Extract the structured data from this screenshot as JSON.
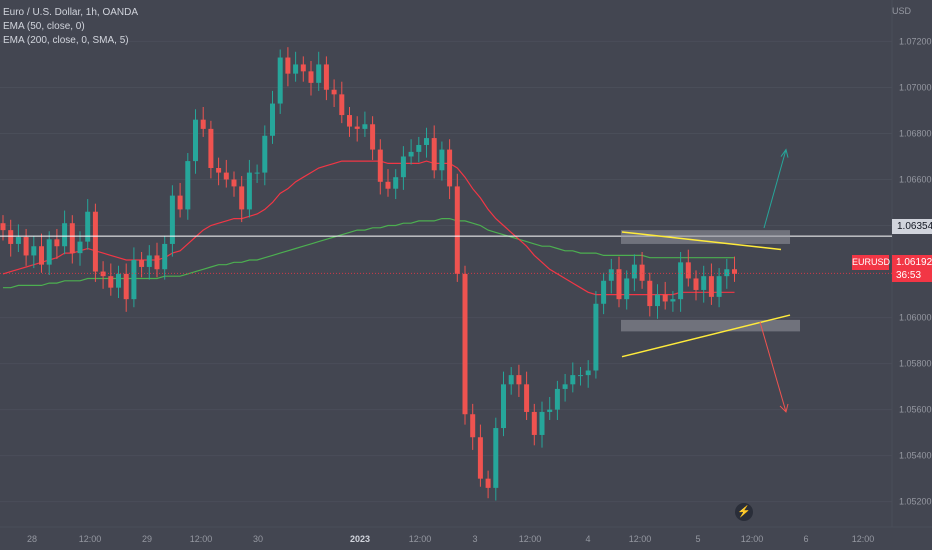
{
  "legend": {
    "symbol": "Euro / U.S. Dollar, 1h, OANDA",
    "ema50": "EMA (50, close, 0)",
    "ema200": "EMA (200, close, 0, SMA, 5)"
  },
  "currency": "USD",
  "symbol_tag": "EURUSD",
  "horizontal_line_price": "1.06354",
  "last_price": "1.06192",
  "countdown": "36:53",
  "colors": {
    "background": "#434651",
    "up": "#26a69a",
    "down": "#ef5350",
    "ema50": "#f23645",
    "ema200": "#4caf50",
    "trendline": "#ffeb3b",
    "zone": "#9598a1"
  },
  "chart_data": {
    "type": "candlestick",
    "y_ticks": [
      "1.07200",
      "1.07000",
      "1.06800",
      "1.06600",
      "1.06400",
      "1.06000",
      "1.05800",
      "1.05600",
      "1.05400",
      "1.05200"
    ],
    "x_ticks": [
      "28",
      "12:00",
      "29",
      "12:00",
      "30",
      "2023",
      "12:00",
      "3",
      "12:00",
      "4",
      "12:00",
      "5",
      "12:00",
      "6",
      "12:00"
    ],
    "ylim": [
      1.0509,
      1.0738
    ],
    "closes": [
      1.0638,
      1.0632,
      1.0635,
      1.0627,
      1.0631,
      1.0623,
      1.0634,
      1.0631,
      1.0641,
      1.0628,
      1.0633,
      1.0646,
      1.062,
      1.0618,
      1.0613,
      1.0619,
      1.0608,
      1.0625,
      1.0622,
      1.0627,
      1.0621,
      1.0632,
      1.0653,
      1.0647,
      1.0668,
      1.0686,
      1.0682,
      1.0665,
      1.0663,
      1.066,
      1.0657,
      1.0647,
      1.0663,
      1.0663,
      1.0679,
      1.0693,
      1.0713,
      1.0706,
      1.071,
      1.0707,
      1.0702,
      1.071,
      1.0699,
      1.0697,
      1.0688,
      1.0683,
      1.0682,
      1.0684,
      1.0673,
      1.0659,
      1.0656,
      1.0661,
      1.067,
      1.0672,
      1.0675,
      1.0678,
      1.0664,
      1.0673,
      1.0657,
      1.0619,
      1.0558,
      1.0548,
      1.053,
      1.0526,
      1.0552,
      1.0571,
      1.0575,
      1.0571,
      1.0559,
      1.0549,
      1.0559,
      1.056,
      1.0569,
      1.0571,
      1.0575,
      1.0575,
      1.0577,
      1.0606,
      1.0616,
      1.0621,
      1.0608,
      1.0617,
      1.0623,
      1.0616,
      1.0605,
      1.061,
      1.0607,
      1.0608,
      1.0624,
      1.0617,
      1.0612,
      1.0618,
      1.0609,
      1.0618,
      1.0621,
      1.0619
    ],
    "ema50": [
      1.0619,
      1.062,
      1.0621,
      1.0622,
      1.0623,
      1.0624,
      1.0625,
      1.0626,
      1.0628,
      1.0628,
      1.0629,
      1.063,
      1.0629,
      1.0628,
      1.0627,
      1.0626,
      1.0625,
      1.0625,
      1.0625,
      1.0625,
      1.0625,
      1.0626,
      1.0628,
      1.0629,
      1.0632,
      1.0635,
      1.0638,
      1.064,
      1.0641,
      1.0642,
      1.0643,
      1.0643,
      1.0644,
      1.0645,
      1.0647,
      1.065,
      1.0654,
      1.0656,
      1.0659,
      1.0661,
      1.0663,
      1.0665,
      1.0666,
      1.0667,
      1.0668,
      1.0668,
      1.0668,
      1.0668,
      1.0668,
      1.0668,
      1.0667,
      1.0667,
      1.0667,
      1.0667,
      1.0667,
      1.0668,
      1.0667,
      1.0667,
      1.0667,
      1.0665,
      1.0661,
      1.0656,
      1.0652,
      1.0647,
      1.0643,
      1.064,
      1.0637,
      1.0634,
      1.0631,
      1.0627,
      1.0624,
      1.0621,
      1.0619,
      1.0617,
      1.0615,
      1.0613,
      1.0611,
      1.061,
      1.061,
      1.061,
      1.061,
      1.061,
      1.061,
      1.061,
      1.061,
      1.061,
      1.061,
      1.061,
      1.0611,
      1.0611,
      1.0611,
      1.0611,
      1.0611,
      1.0611,
      1.0611,
      1.0611
    ],
    "ema200": [
      1.0613,
      1.0613,
      1.0614,
      1.0614,
      1.0614,
      1.0614,
      1.0615,
      1.0615,
      1.0616,
      1.0616,
      1.0616,
      1.0617,
      1.0617,
      1.0617,
      1.0617,
      1.0617,
      1.0617,
      1.0617,
      1.0617,
      1.0617,
      1.0617,
      1.0618,
      1.0618,
      1.0618,
      1.0619,
      1.062,
      1.0621,
      1.0622,
      1.0623,
      1.0623,
      1.0624,
      1.0624,
      1.0625,
      1.0625,
      1.0626,
      1.0627,
      1.0628,
      1.0629,
      1.063,
      1.0631,
      1.0632,
      1.0633,
      1.0634,
      1.0635,
      1.0636,
      1.0637,
      1.0638,
      1.0638,
      1.0639,
      1.0639,
      1.064,
      1.064,
      1.0641,
      1.0641,
      1.0642,
      1.0642,
      1.0642,
      1.0643,
      1.0643,
      1.0642,
      1.0642,
      1.0641,
      1.064,
      1.0638,
      1.0637,
      1.0636,
      1.0635,
      1.0634,
      1.0633,
      1.0632,
      1.0631,
      1.0631,
      1.063,
      1.0629,
      1.0629,
      1.0628,
      1.0628,
      1.0628,
      1.0627,
      1.0627,
      1.0627,
      1.0627,
      1.0627,
      1.0627,
      1.0626,
      1.0626,
      1.0626,
      1.0626,
      1.0626,
      1.0626,
      1.0626,
      1.0626,
      1.0626,
      1.0626,
      1.0626,
      1.0626
    ],
    "horizontal_line": 1.06354,
    "resistance_zone": [
      1.0632,
      1.0638
    ],
    "support_zone": [
      1.0594,
      1.0599
    ],
    "upper_trendline": [
      1.06372,
      1.06296
    ],
    "lower_trendline": [
      1.0583,
      1.06011
    ],
    "arrow_up_target": 1.0673,
    "arrow_down_target": 1.0559
  }
}
